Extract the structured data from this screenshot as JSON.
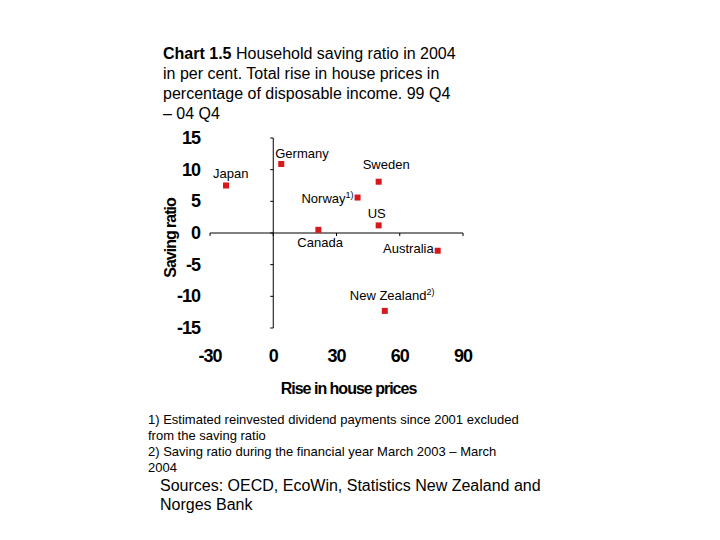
{
  "chart_data": {
    "type": "scatter",
    "chart_number": "Chart 1.5",
    "title": "Household saving ratio in 2004 in per cent. Total rise in house prices in percentage of disposable income. 99 Q4 – 04 Q4",
    "x_label": "Rise in house prices",
    "y_label": "Saving ratio",
    "point_labels": [
      "Japan",
      "Germany",
      "Sweden",
      "Norway",
      "US",
      "Canada",
      "Australia",
      "New Zealand"
    ],
    "point_label_notes": [
      null,
      null,
      null,
      "1)",
      null,
      null,
      null,
      "2)"
    ],
    "x": [
      -22.4,
      3.8,
      50,
      40,
      50,
      21.4,
      78,
      52.9
    ],
    "values": [
      7.5,
      10.9,
      8.1,
      5.6,
      1.2,
      0.5,
      -2.8,
      -12.3
    ],
    "color": "#d7191c",
    "marker": "square",
    "xlim": [
      -30,
      90
    ],
    "xticks": [
      -30,
      0,
      30,
      60,
      90
    ],
    "ylim": [
      -15,
      15
    ],
    "yticks": [
      -15,
      -10,
      -5,
      0,
      5,
      10,
      15
    ],
    "grid": false,
    "footnotes": [
      "1) Estimated reinvested dividend payments since 2001 excluded from the saving ratio",
      "2) Saving ratio during the financial year March 2003 – March 2004"
    ],
    "source": "Sources: OECD, EcoWin, Statistics New Zealand and Norges Bank"
  }
}
